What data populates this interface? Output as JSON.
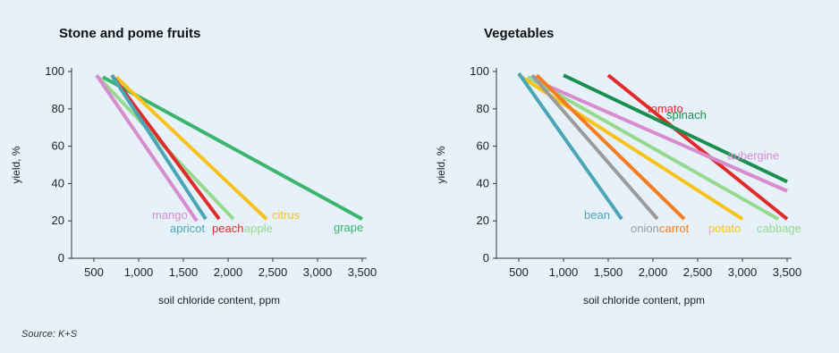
{
  "source": "Source: K+S",
  "chart_data": [
    {
      "type": "line",
      "title": "Stone and pome fruits",
      "xlabel": "soil chloride content, ppm",
      "ylabel": "yield, %",
      "xlim": [
        250,
        3550
      ],
      "ylim": [
        0,
        100
      ],
      "xticks": [
        500,
        1000,
        1500,
        2000,
        2500,
        3000,
        3500
      ],
      "xtick_labels": [
        "500",
        "1,000",
        "1,500",
        "2,000",
        "2,500",
        "3,000",
        "3,500"
      ],
      "yticks": [
        0,
        20,
        40,
        60,
        80,
        100
      ],
      "ytick_labels": [
        "0",
        "20",
        "40",
        "60",
        "80",
        "100"
      ],
      "grid": false,
      "series": [
        {
          "name": "grape",
          "color": "#3bb56d",
          "x": [
            600,
            3500
          ],
          "y": [
            97,
            21
          ]
        },
        {
          "name": "citrus",
          "color": "#f7c31b",
          "x": [
            750,
            2430
          ],
          "y": [
            97,
            21
          ]
        },
        {
          "name": "apple",
          "color": "#97d98f",
          "x": [
            550,
            2060
          ],
          "y": [
            97,
            21
          ]
        },
        {
          "name": "peach",
          "color": "#e02b2b",
          "x": [
            700,
            1900
          ],
          "y": [
            98,
            21
          ]
        },
        {
          "name": "apricot",
          "color": "#4aa6b5",
          "x": [
            700,
            1750
          ],
          "y": [
            98,
            21
          ]
        },
        {
          "name": "mango",
          "color": "#d88ccd",
          "x": [
            530,
            1650
          ],
          "y": [
            98,
            20
          ]
        }
      ]
    },
    {
      "type": "line",
      "title": "Vegetables",
      "xlabel": "soil chloride content, ppm",
      "ylabel": "yield, %",
      "xlim": [
        250,
        3550
      ],
      "ylim": [
        0,
        100
      ],
      "xticks": [
        500,
        1000,
        1500,
        2000,
        2500,
        3000,
        3500
      ],
      "xtick_labels": [
        "500",
        "1,000",
        "1,500",
        "2,000",
        "2,500",
        "3,000",
        "3,500"
      ],
      "yticks": [
        0,
        20,
        40,
        60,
        80,
        100
      ],
      "ytick_labels": [
        "0",
        "20",
        "40",
        "60",
        "80",
        "100"
      ],
      "grid": false,
      "series": [
        {
          "name": "tomato",
          "color": "#e02b2b",
          "x": [
            1500,
            3500
          ],
          "y": [
            98,
            21
          ]
        },
        {
          "name": "spinach",
          "color": "#1a8f4e",
          "x": [
            1000,
            3500
          ],
          "y": [
            98,
            41
          ]
        },
        {
          "name": "aubergine",
          "color": "#d88ccd",
          "x": [
            600,
            3500
          ],
          "y": [
            97,
            36
          ]
        },
        {
          "name": "cabbage",
          "color": "#97d98f",
          "x": [
            600,
            3400
          ],
          "y": [
            97,
            21
          ]
        },
        {
          "name": "potato",
          "color": "#f7c31b",
          "x": [
            500,
            3000
          ],
          "y": [
            98,
            21
          ]
        },
        {
          "name": "carrot",
          "color": "#f57c1f",
          "x": [
            700,
            2350
          ],
          "y": [
            98,
            21
          ]
        },
        {
          "name": "onion",
          "color": "#9b9b9b",
          "x": [
            650,
            2050
          ],
          "y": [
            98,
            21
          ]
        },
        {
          "name": "bean",
          "color": "#4aa6b5",
          "x": [
            500,
            1650
          ],
          "y": [
            99,
            21
          ]
        }
      ]
    }
  ]
}
